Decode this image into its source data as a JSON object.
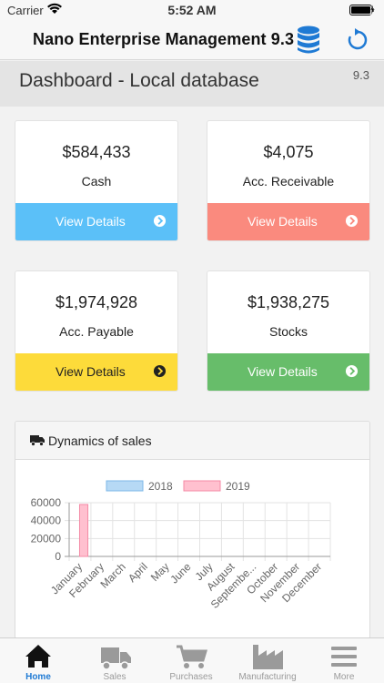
{
  "status": {
    "carrier": "Carrier",
    "time": "5:52 AM"
  },
  "nav": {
    "title": "Nano Enterprise Management 9.3"
  },
  "header": {
    "title": "Dashboard - Local database",
    "version": "9.3"
  },
  "cards": [
    {
      "value": "$584,433",
      "label": "Cash",
      "action": "View Details",
      "color": "#5bc0f8"
    },
    {
      "value": "$4,075",
      "label": "Acc. Receivable",
      "action": "View Details",
      "color": "#fa8a7e"
    },
    {
      "value": "$1,974,928",
      "label": "Acc. Payable",
      "action": "View Details",
      "color": "#fddb3a"
    },
    {
      "value": "$1,938,275",
      "label": "Stocks",
      "action": "View Details",
      "color": "#67bd6a"
    }
  ],
  "panel": {
    "title": "Dynamics of sales"
  },
  "chart_data": {
    "type": "bar",
    "categories": [
      "January",
      "February",
      "March",
      "April",
      "May",
      "June",
      "July",
      "August",
      "Septembe...",
      "October",
      "November",
      "December"
    ],
    "series": [
      {
        "name": "2018",
        "color": "#b6d9f5",
        "values": [
          0,
          0,
          0,
          0,
          0,
          0,
          0,
          0,
          0,
          0,
          0,
          0
        ]
      },
      {
        "name": "2019",
        "color": "#ffc0cf",
        "values": [
          58000,
          0,
          0,
          0,
          0,
          0,
          0,
          0,
          0,
          0,
          0,
          0
        ]
      }
    ],
    "yticks": [
      0,
      20000,
      40000,
      60000
    ],
    "ylim": [
      0,
      60000
    ],
    "legend": "top",
    "grid": true
  },
  "tabs": [
    {
      "label": "Home",
      "icon": "home-icon",
      "active": true
    },
    {
      "label": "Sales",
      "icon": "truck-icon"
    },
    {
      "label": "Purchases",
      "icon": "cart-icon"
    },
    {
      "label": "Manufacturing",
      "icon": "factory-icon"
    },
    {
      "label": "More",
      "icon": "menu-icon"
    }
  ],
  "colors": {
    "accent": "#1f7ad4",
    "active_tab": "#1f7ad4"
  }
}
